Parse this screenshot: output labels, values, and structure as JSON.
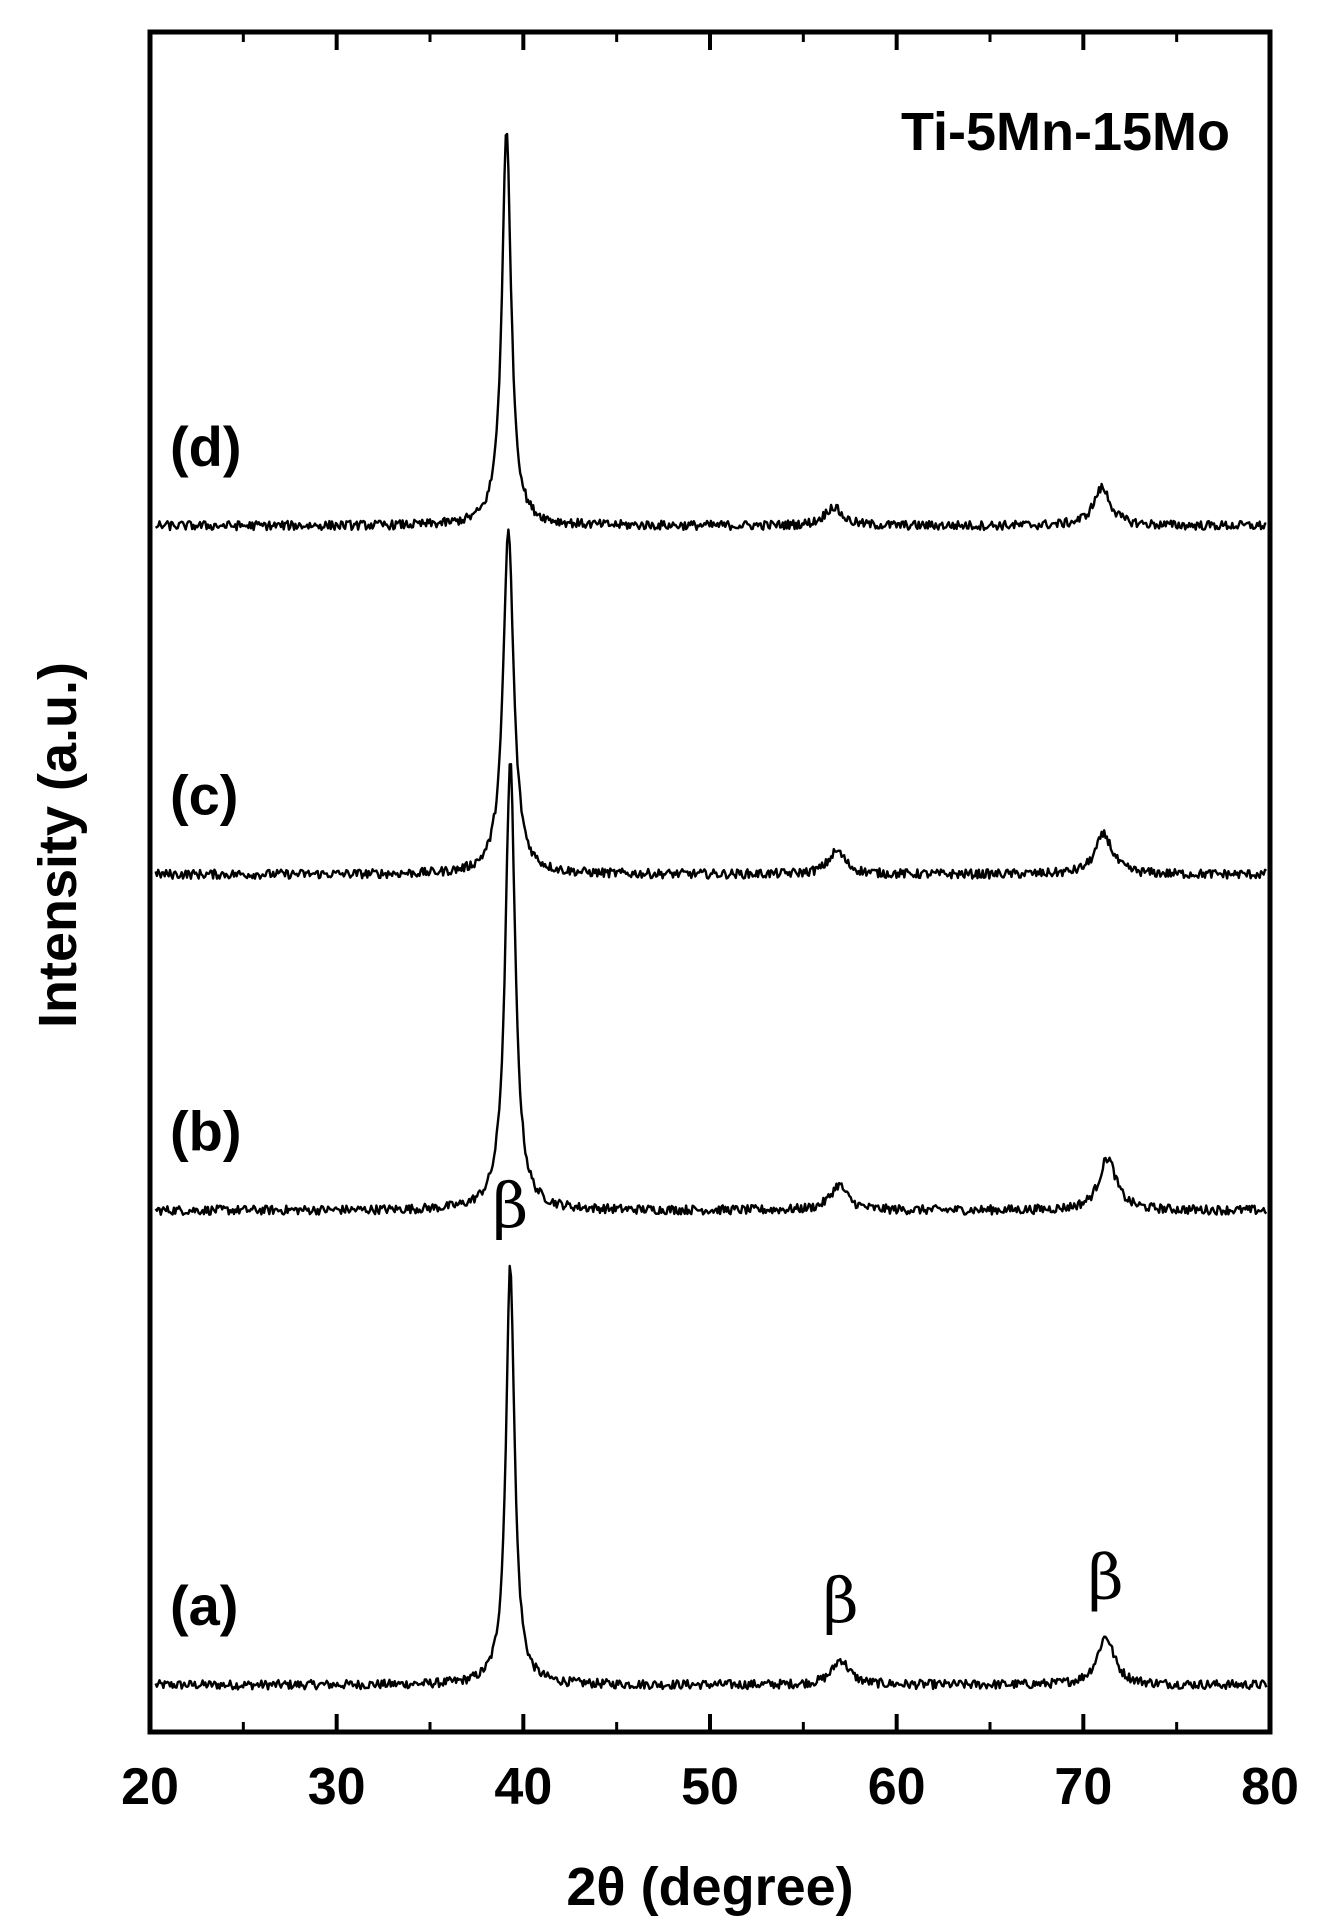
{
  "chart_data": {
    "type": "line",
    "title": "",
    "xlabel": "2θ (degree)",
    "ylabel": "Intensity (a.u.)",
    "xlim": [
      20,
      80
    ],
    "xticks": [
      20,
      30,
      40,
      50,
      60,
      70,
      80
    ],
    "xtick_labels": [
      "20",
      "30",
      "40",
      "50",
      "60",
      "70",
      "80"
    ],
    "y_ticks_shown": false,
    "grid": false,
    "legend": "none",
    "alloy_label": "Ti-5Mn-15Mo",
    "series": [
      {
        "name": "(a)",
        "baseline": 0.0,
        "peaks": [
          {
            "x": 39.3,
            "height": 1.0,
            "width": 0.28
          },
          {
            "x": 57.0,
            "height": 0.06,
            "width": 0.55
          },
          {
            "x": 71.2,
            "height": 0.115,
            "width": 0.55
          }
        ]
      },
      {
        "name": "(b)",
        "baseline": 1.13,
        "peaks": [
          {
            "x": 39.3,
            "height": 1.07,
            "width": 0.32
          },
          {
            "x": 56.9,
            "height": 0.06,
            "width": 0.55
          },
          {
            "x": 71.3,
            "height": 0.125,
            "width": 0.55
          }
        ]
      },
      {
        "name": "(c)",
        "baseline": 1.93,
        "peaks": [
          {
            "x": 39.2,
            "height": 0.82,
            "width": 0.34
          },
          {
            "x": 56.8,
            "height": 0.055,
            "width": 0.55
          },
          {
            "x": 71.1,
            "height": 0.095,
            "width": 0.55
          }
        ]
      },
      {
        "name": "(d)",
        "baseline": 2.76,
        "peaks": [
          {
            "x": 39.1,
            "height": 0.94,
            "width": 0.3
          },
          {
            "x": 56.6,
            "height": 0.045,
            "width": 0.55
          },
          {
            "x": 71.0,
            "height": 0.09,
            "width": 0.55
          }
        ]
      }
    ],
    "annotations": [
      {
        "text": "β",
        "x": 39.3,
        "anchor_series": "(a)",
        "note": "above main peak"
      },
      {
        "text": "β",
        "x": 57.0,
        "anchor_series": "(a)",
        "note": "above peak"
      },
      {
        "text": "β",
        "x": 71.2,
        "anchor_series": "(a)",
        "note": "above peak"
      }
    ]
  }
}
